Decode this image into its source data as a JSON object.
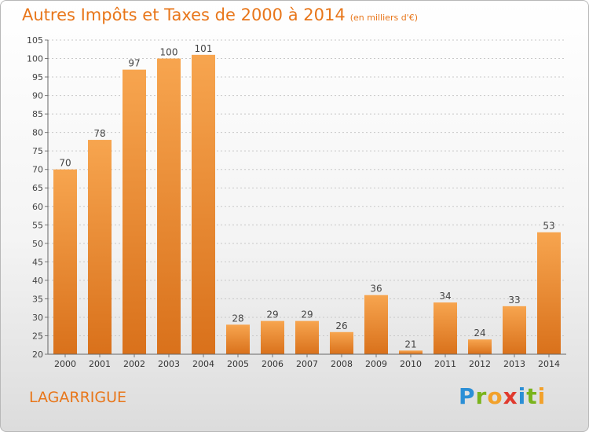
{
  "title": "Autres Impôts et Taxes de 2000 à 2014",
  "subtitle": "(en milliers d'€)",
  "commune": "LAGARRIGUE",
  "logo": {
    "letters": [
      "P",
      "r",
      "o",
      "x",
      "i",
      "t",
      "i"
    ],
    "colors": [
      "#2b8fd6",
      "#7ab41d",
      "#f2a12b",
      "#e03a2e",
      "#2b8fd6",
      "#7ab41d",
      "#f2a12b"
    ]
  },
  "colors": {
    "accent": "#e8761a",
    "bar_light": "#f7a54f",
    "bar_dark": "#d9711b"
  },
  "chart_data": {
    "type": "bar",
    "categories": [
      "2000",
      "2001",
      "2002",
      "2003",
      "2004",
      "2005",
      "2006",
      "2007",
      "2008",
      "2009",
      "2010",
      "2011",
      "2012",
      "2013",
      "2014"
    ],
    "values": [
      70,
      78,
      97,
      100,
      101,
      28,
      29,
      29,
      26,
      36,
      21,
      34,
      24,
      33,
      53
    ],
    "title": "Autres Impôts et Taxes de 2000 à 2014",
    "subtitle": "(en milliers d'€)",
    "ylim": [
      20,
      105
    ],
    "yticks": [
      20,
      25,
      30,
      35,
      40,
      45,
      50,
      55,
      60,
      65,
      70,
      75,
      80,
      85,
      90,
      95,
      100,
      105
    ],
    "grid": true
  }
}
